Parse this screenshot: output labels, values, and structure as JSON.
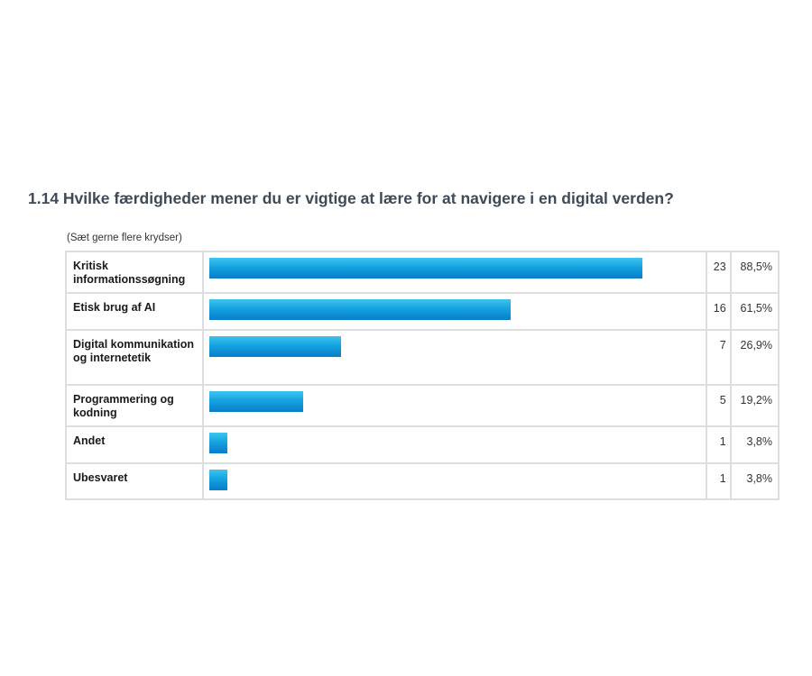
{
  "question": {
    "title": "1.14 Hvilke færdigheder mener du er vigtige at lære for at navigere i en digital verden?",
    "instruction": "(Sæt gerne flere krydser)"
  },
  "colors": {
    "bar_top": "#3fc4ef",
    "bar_bottom": "#0a7cc8",
    "title": "#3e4a57",
    "border": "#dedede"
  },
  "chart_data": {
    "type": "bar",
    "orientation": "horizontal",
    "title": "1.14 Hvilke færdigheder mener du er vigtige at lære for at navigere i en digital verden?",
    "subtitle": "(Sæt gerne flere krydser)",
    "categories": [
      "Kritisk informationssøgning",
      "Etisk brug af AI",
      "Digital kommunikation og internetetik",
      "Programmering og kodning",
      "Andet",
      "Ubesvaret"
    ],
    "counts": [
      23,
      16,
      7,
      5,
      1,
      1
    ],
    "values": [
      88.5,
      61.5,
      26.9,
      19.2,
      3.8,
      3.8
    ],
    "value_labels": [
      "88,5%",
      "61,5%",
      "26,9%",
      "19,2%",
      "3,8%",
      "3,8%"
    ],
    "xlim": [
      0,
      100
    ],
    "grid": false,
    "legend": "none"
  }
}
